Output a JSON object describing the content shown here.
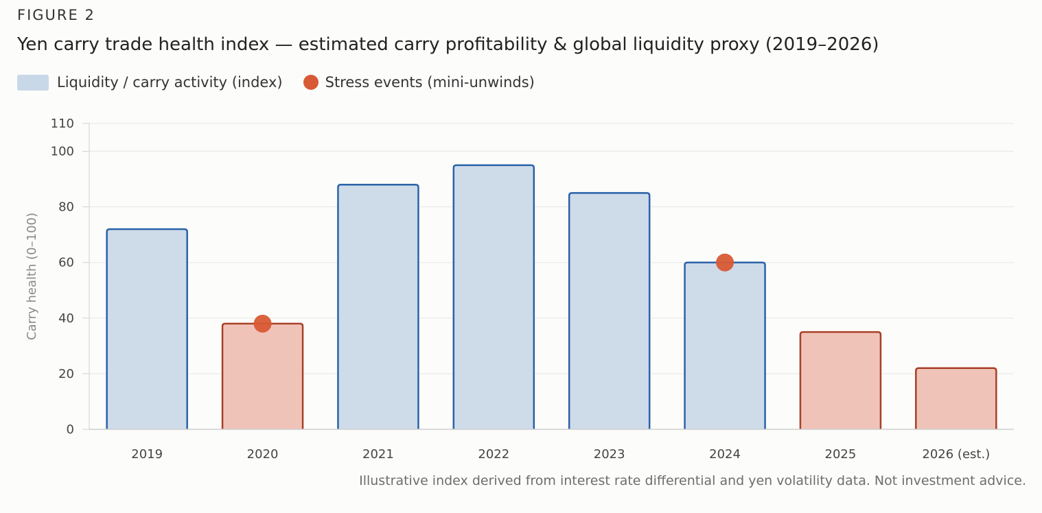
{
  "figure": {
    "label": "FIGURE 2",
    "title": "Yen carry trade health index — estimated carry profitability & global liquidity proxy (2019–2026)",
    "footnote": "Illustrative index derived from interest rate differential and yen volatility data. Not investment advice."
  },
  "legend": {
    "bars_label": "Liquidity / carry activity (index)",
    "events_label": "Stress events (mini-unwinds)"
  },
  "colors": {
    "healthy_fill": "#cedbe9",
    "healthy_stroke": "#2a62a8",
    "stress_fill": "#f0c3b8",
    "stress_stroke": "#a84028",
    "event_dot": "#d85a34",
    "grid": "#e6e6e6"
  },
  "chart_data": {
    "type": "bar",
    "title": "Yen carry trade health index — estimated carry profitability & global liquidity proxy (2019–2026)",
    "xlabel": "",
    "ylabel": "Carry health (0–100)",
    "ylim": [
      0,
      110
    ],
    "yticks": [
      0,
      20,
      40,
      60,
      80,
      100,
      110
    ],
    "grid": true,
    "categories": [
      "2019",
      "2020",
      "2021",
      "2022",
      "2023",
      "2024",
      "2025",
      "2026 (est.)"
    ],
    "series": [
      {
        "name": "Liquidity / carry activity (index)",
        "values": [
          72,
          38,
          88,
          95,
          85,
          60,
          35,
          22
        ],
        "status": [
          "healthy",
          "stress",
          "healthy",
          "healthy",
          "healthy",
          "healthy",
          "stress",
          "stress"
        ]
      },
      {
        "name": "Stress events (mini-unwinds)",
        "type": "scatter",
        "points": [
          {
            "x": "2020",
            "y": 38
          },
          {
            "x": "2024",
            "y": 60
          }
        ]
      }
    ]
  }
}
